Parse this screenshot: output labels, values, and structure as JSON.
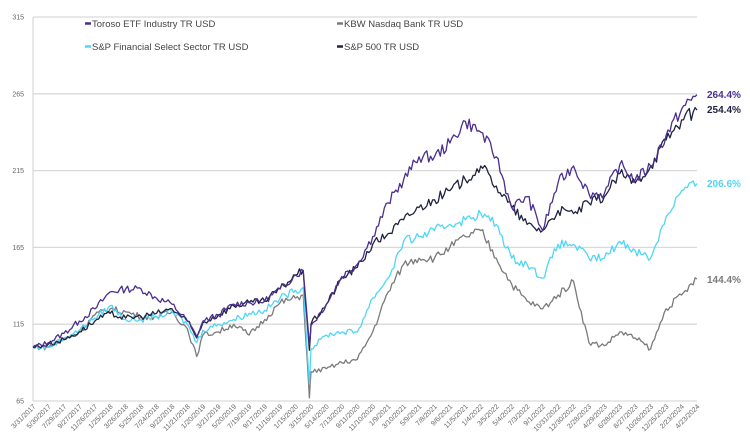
{
  "chart_data": {
    "type": "line",
    "title": "",
    "xlabel": "",
    "ylabel": "",
    "ylim": [
      65,
      315
    ],
    "yticks": [
      "65",
      "115",
      "165",
      "215",
      "265",
      "315"
    ],
    "grid": true,
    "legend_placement": "top-left",
    "x_tick_labels": [
      "3/31/2017",
      "5/30/2017",
      "7/29/2017",
      "9/27/2017",
      "11/26/2017",
      "1/25/2018",
      "3/26/2018",
      "5/25/2018",
      "7/24/2018",
      "9/22/2018",
      "11/21/2018",
      "1/20/2019",
      "3/21/2019",
      "5/20/2019",
      "7/19/2019",
      "9/17/2019",
      "11/16/2019",
      "1/15/2020",
      "3/15/2020",
      "5/14/2020",
      "7/13/2020",
      "9/11/2020",
      "11/10/2020",
      "1/9/2021",
      "3/10/2021",
      "5/9/2021",
      "7/8/2021",
      "9/6/2021",
      "11/5/2021",
      "1/4/2022",
      "3/5/2022",
      "5/4/2022",
      "7/3/2022",
      "9/1/2022",
      "10/31/2022",
      "12/30/2022",
      "2/28/2023",
      "4/29/2023",
      "6/28/2023",
      "8/27/2023",
      "10/26/2023",
      "12/25/2023",
      "2/23/2024",
      "4/23/2024"
    ],
    "x_index": [
      0,
      1,
      2,
      3,
      4,
      5,
      6,
      7,
      8,
      9,
      10,
      10.6,
      11,
      12,
      13,
      14,
      15,
      16,
      17,
      17.5,
      17.9,
      18,
      19,
      20,
      21,
      22,
      23,
      24,
      25,
      26,
      27,
      28,
      29,
      30,
      31,
      32,
      33,
      34,
      35,
      36,
      37,
      38,
      39,
      40,
      41,
      42,
      43
    ],
    "series": [
      {
        "name": "Toroso ETF Industry TR USD",
        "color": "#4b2e8f",
        "end_label": "264.4%",
        "values": [
          100,
          103,
          109,
          117,
          125,
          136,
          138,
          138,
          132,
          128,
          117,
          107,
          117,
          121,
          128,
          129,
          130,
          138,
          147,
          150,
          102,
          114,
          128,
          146,
          154,
          172,
          194,
          209,
          224,
          224,
          233,
          247,
          240,
          224,
          191,
          198,
          176,
          207,
          218,
          200,
          200,
          219,
          209,
          218,
          238,
          255,
          264.4
        ]
      },
      {
        "name": "KBW Nasdaq Bank TR USD",
        "color": "#7a7a7a",
        "end_label": "144.4%",
        "values": [
          100,
          100,
          105,
          110,
          121,
          125,
          123,
          120,
          120,
          123,
          112,
          94,
          108,
          110,
          115,
          108,
          118,
          129,
          132,
          134,
          67,
          84,
          86,
          90,
          92,
          110,
          136,
          154,
          158,
          158,
          165,
          172,
          176,
          158,
          141,
          130,
          125,
          134,
          143,
          103,
          101,
          110,
          106,
          99,
          125,
          134,
          144.4
        ]
      },
      {
        "name": "S&P Financial Select Sector TR USD",
        "color": "#4fd6f5",
        "end_label": "206.6%",
        "values": [
          100,
          100,
          106,
          111,
          119,
          127,
          118,
          118,
          120,
          123,
          115,
          103,
          111,
          115,
          118,
          122,
          124,
          132,
          137,
          139,
          76,
          99,
          108,
          110,
          110,
          132,
          145,
          169,
          172,
          176,
          180,
          183,
          187,
          180,
          158,
          154,
          145,
          167,
          167,
          158,
          158,
          169,
          163,
          158,
          185,
          202,
          206.6
        ]
      },
      {
        "name": "S&P 500 TR USD",
        "color": "#1f2340",
        "end_label": "254.4%",
        "values": [
          100,
          102,
          105,
          110,
          117,
          122,
          119,
          120,
          122,
          125,
          117,
          106,
          116,
          121,
          127,
          129,
          130,
          138,
          147,
          150,
          98,
          115,
          128,
          145,
          152,
          167,
          174,
          183,
          191,
          196,
          202,
          209,
          218,
          205,
          191,
          180,
          176,
          189,
          187,
          194,
          198,
          213,
          207,
          218,
          235,
          248,
          254.4
        ]
      }
    ]
  }
}
